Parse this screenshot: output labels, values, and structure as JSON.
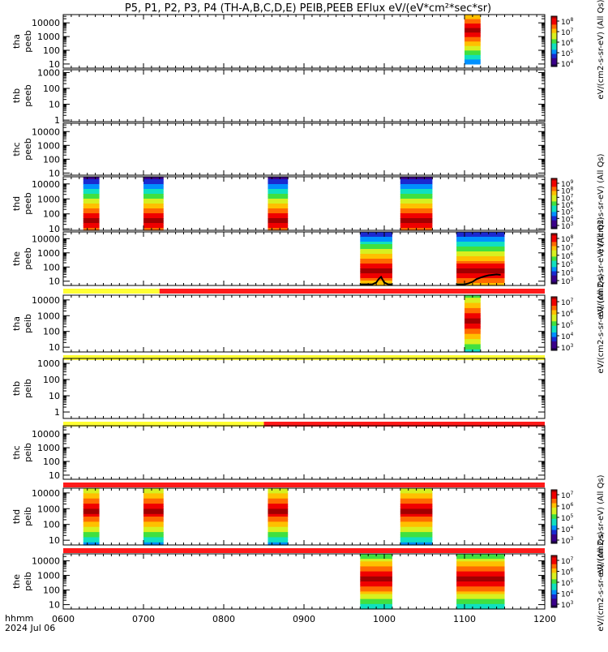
{
  "title": "P5, P1, P2, P3, P4 (TH-A,B,C,D,E) PEIB,PEEB EFlux eV/(eV*cm²*sec*sr)",
  "colors": {
    "quality_yellow": "#ffff33",
    "quality_red": "#ff1a1a",
    "trace": "#000000",
    "spectrogram_scale": [
      "#20004a",
      "#3a008a",
      "#1a2ad0",
      "#0090ff",
      "#10e0c0",
      "#40e040",
      "#d8f020",
      "#ffc000",
      "#ff6a00",
      "#f00000",
      "#a00000"
    ]
  },
  "chart_data": {
    "type": "heatmap",
    "x_axis": {
      "label_line1": "hhmm",
      "label_line2": "2024 Jul 06",
      "range": [
        600,
        1200
      ],
      "ticks": [
        "0600",
        "0700",
        "0800",
        "0900",
        "1000",
        "1100",
        "1200"
      ]
    },
    "panels": [
      {
        "id": "tha-peeb",
        "label_line1": "tha",
        "label_line2": "peeb",
        "ylim": [
          5,
          40000
        ],
        "yticks": [
          "10000",
          "1000",
          "100",
          "10"
        ],
        "yvals": [
          10000,
          1000,
          100,
          10
        ],
        "blocks": [
          {
            "start": 1100,
            "end": 1120,
            "emin": 10,
            "emax": 40000,
            "peak": 3000,
            "hue": "hot"
          }
        ],
        "colorbar": {
          "ticks": [
            "10^8",
            "10^7",
            "10^6",
            "10^5",
            "10^4"
          ],
          "label": "eV/(cm2-s-sr-eV) (All Qs)"
        }
      },
      {
        "id": "thb-peeb",
        "label_line1": "thb",
        "label_line2": "peeb",
        "ylim": [
          0.8,
          1500
        ],
        "yticks": [
          "1000",
          "100",
          "10",
          "1"
        ],
        "yvals": [
          1000,
          100,
          10,
          1
        ],
        "blocks": []
      },
      {
        "id": "thc-peeb",
        "label_line1": "thc",
        "label_line2": "peeb",
        "ylim": [
          7,
          40000
        ],
        "yticks": [
          "10000",
          "1000",
          "100",
          "10"
        ],
        "yvals": [
          10000,
          1000,
          100,
          10
        ],
        "blocks": []
      },
      {
        "id": "thd-peeb",
        "label_line1": "thd",
        "label_line2": "peeb",
        "ylim": [
          8,
          30000
        ],
        "yticks": [
          "10000",
          "1000",
          "100",
          "10"
        ],
        "yvals": [
          10000,
          1000,
          100,
          10
        ],
        "blocks": [
          {
            "start": 625,
            "end": 645,
            "emin": 8,
            "emax": 30000,
            "peak": 40
          },
          {
            "start": 700,
            "end": 725,
            "emin": 8,
            "emax": 30000,
            "peak": 40
          },
          {
            "start": 855,
            "end": 880,
            "emin": 8,
            "emax": 30000,
            "peak": 40
          },
          {
            "start": 1020,
            "end": 1060,
            "emin": 8,
            "emax": 30000,
            "peak": 40
          }
        ],
        "colorbar": {
          "ticks": [
            "10^9",
            "10^8",
            "10^7",
            "10^6",
            "10^5",
            "10^4",
            "10^3"
          ],
          "label": "eV/(cm2-s-sr-eV) (All Qs)"
        }
      },
      {
        "id": "the-peeb",
        "label_line1": "the",
        "label_line2": "peeb",
        "ylim": [
          5,
          30000
        ],
        "yticks": [
          "10000",
          "1000",
          "100",
          "10"
        ],
        "yvals": [
          10000,
          1000,
          100,
          10
        ],
        "blocks": [
          {
            "start": 970,
            "end": 1010,
            "emin": 5,
            "emax": 30000,
            "peak": 60
          },
          {
            "start": 1090,
            "end": 1150,
            "emin": 5,
            "emax": 30000,
            "peak": 50
          }
        ],
        "trace": {
          "x": [
            970,
            985,
            990,
            993,
            996,
            1000,
            1005,
            1010,
            1090,
            1100,
            1105,
            1110,
            1115,
            1120,
            1125,
            1130,
            1140,
            1145
          ],
          "y": [
            6,
            6,
            8,
            14,
            20,
            8,
            6,
            6,
            6,
            6,
            7,
            9,
            14,
            18,
            22,
            26,
            30,
            28
          ]
        },
        "quality_bar": [
          {
            "start": 600,
            "end": 720,
            "color": "yellow"
          },
          {
            "start": 720,
            "end": 1200,
            "color": "red"
          }
        ],
        "colorbar": {
          "ticks": [
            "10^8",
            "10^7",
            "10^6",
            "10^5",
            "10^4",
            "10^3"
          ],
          "label": "eV/(cm2-s-sr-eV) (All Qs)"
        }
      },
      {
        "id": "tha-peib",
        "label_line1": "tha",
        "label_line2": "peib",
        "ylim": [
          5,
          20000
        ],
        "yticks": [
          "10000",
          "1000",
          "100",
          "10"
        ],
        "yvals": [
          10000,
          1000,
          100,
          10
        ],
        "blocks": [
          {
            "start": 1100,
            "end": 1120,
            "emin": 5,
            "emax": 20000,
            "peak": 500
          }
        ],
        "quality_bar": [
          {
            "start": 600,
            "end": 1200,
            "color": "yellow"
          }
        ],
        "colorbar": {
          "ticks": [
            "10^7",
            "10^6",
            "10^5",
            "10^4",
            "10^3"
          ],
          "label": "eV/(cm2-s-sr-eV) (All Qs)"
        }
      },
      {
        "id": "thb-peib",
        "label_line1": "thb",
        "label_line2": "peib",
        "ylim": [
          0.4,
          2000
        ],
        "yticks": [
          "1000",
          "100",
          "10",
          "1"
        ],
        "yvals": [
          1000,
          100,
          10,
          1
        ],
        "blocks": [],
        "quality_bar": [
          {
            "start": 600,
            "end": 850,
            "color": "yellow"
          },
          {
            "start": 850,
            "end": 1200,
            "color": "red"
          }
        ]
      },
      {
        "id": "thc-peib",
        "label_line1": "thc",
        "label_line2": "peib",
        "ylim": [
          5,
          40000
        ],
        "yticks": [
          "10000",
          "1000",
          "100",
          "10"
        ],
        "yvals": [
          10000,
          1000,
          100,
          10
        ],
        "blocks": [],
        "quality_bar": [
          {
            "start": 600,
            "end": 1200,
            "color": "red"
          }
        ]
      },
      {
        "id": "thd-peib",
        "label_line1": "thd",
        "label_line2": "peib",
        "ylim": [
          5,
          20000
        ],
        "yticks": [
          "10000",
          "1000",
          "100",
          "10"
        ],
        "yvals": [
          10000,
          1000,
          100,
          10
        ],
        "blocks": [
          {
            "start": 625,
            "end": 645,
            "emin": 5,
            "emax": 20000,
            "peak": 800
          },
          {
            "start": 700,
            "end": 725,
            "emin": 5,
            "emax": 20000,
            "peak": 800
          },
          {
            "start": 855,
            "end": 880,
            "emin": 5,
            "emax": 20000,
            "peak": 800
          },
          {
            "start": 1020,
            "end": 1060,
            "emin": 5,
            "emax": 20000,
            "peak": 800
          }
        ],
        "quality_bar": [
          {
            "start": 600,
            "end": 1200,
            "color": "red"
          }
        ],
        "colorbar": {
          "ticks": [
            "10^7",
            "10^6",
            "10^5",
            "10^4",
            "10^3"
          ],
          "label": "eV/(cm2-s-sr-eV) (All Qs)"
        }
      },
      {
        "id": "the-peib",
        "label_line1": "the",
        "label_line2": "peib",
        "ylim": [
          5,
          30000
        ],
        "yticks": [
          "10000",
          "1000",
          "100",
          "10"
        ],
        "yvals": [
          10000,
          1000,
          100,
          10
        ],
        "blocks": [
          {
            "start": 970,
            "end": 1010,
            "emin": 5,
            "emax": 30000,
            "peak": 600
          },
          {
            "start": 1090,
            "end": 1150,
            "emin": 5,
            "emax": 30000,
            "peak": 600
          }
        ],
        "colorbar": {
          "ticks": [
            "10^7",
            "10^6",
            "10^5",
            "10^4",
            "10^3"
          ],
          "label": "eV/(cm2-s-sr-eV) (All Qs)"
        }
      }
    ]
  }
}
